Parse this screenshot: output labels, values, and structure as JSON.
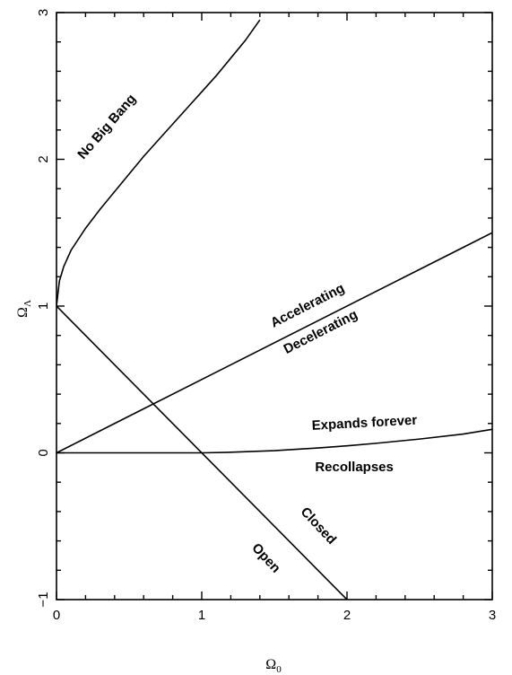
{
  "chart_data": {
    "type": "line",
    "title": "",
    "xlabel": {
      "base": "Ω",
      "sub": "0"
    },
    "ylabel": {
      "base": "Ω",
      "sub": "Λ"
    },
    "xlim": [
      0,
      3
    ],
    "ylim": [
      -1,
      3
    ],
    "x_ticks": [
      0,
      1,
      2,
      3
    ],
    "y_ticks": [
      -1,
      0,
      1,
      2,
      3
    ],
    "x_tick_labels": [
      "0",
      "1",
      "2",
      "3"
    ],
    "y_tick_labels": [
      "−1",
      "0",
      "1",
      "2",
      "3"
    ],
    "grid": false,
    "legend": "none",
    "series": [
      {
        "curve": "no-big-bang-boundary",
        "x": [
          0,
          0.02,
          0.05,
          0.1,
          0.2,
          0.3,
          0.4,
          0.5,
          0.6,
          0.7,
          0.8,
          0.9,
          1.0,
          1.1,
          1.2,
          1.3,
          1.4
        ],
        "y": [
          1.0,
          1.17,
          1.27,
          1.38,
          1.53,
          1.66,
          1.78,
          1.9,
          2.02,
          2.13,
          2.24,
          2.35,
          2.46,
          2.57,
          2.69,
          2.81,
          2.95
        ]
      },
      {
        "curve": "acceleration-boundary",
        "x": [
          0,
          3
        ],
        "y": [
          0,
          1.5
        ]
      },
      {
        "curve": "expansion-boundary",
        "x": [
          0,
          0.5,
          1.0,
          1.2,
          1.5,
          1.8,
          2.0,
          2.2,
          2.5,
          2.8,
          3.0
        ],
        "y": [
          0,
          0,
          0,
          0.004,
          0.015,
          0.033,
          0.048,
          0.065,
          0.094,
          0.128,
          0.16
        ]
      },
      {
        "curve": "geometry-boundary",
        "x": [
          0,
          2
        ],
        "y": [
          1,
          -1
        ]
      }
    ],
    "annotations": [
      {
        "text": "No Big Bang",
        "x": 0.35,
        "y": 2.22,
        "angle": -49
      },
      {
        "text": "Accelerating",
        "x": 1.73,
        "y": 1.0,
        "angle": -27
      },
      {
        "text": "Decelerating",
        "x": 1.82,
        "y": 0.82,
        "angle": -27
      },
      {
        "text": "Expands forever",
        "x": 2.12,
        "y": 0.2,
        "angle": -3
      },
      {
        "text": "Recollapses",
        "x": 2.05,
        "y": -0.1,
        "angle": 0
      },
      {
        "text": "Closed",
        "x": 1.8,
        "y": -0.5,
        "angle": 47
      },
      {
        "text": "Open",
        "x": 1.44,
        "y": -0.72,
        "angle": 47
      }
    ]
  }
}
